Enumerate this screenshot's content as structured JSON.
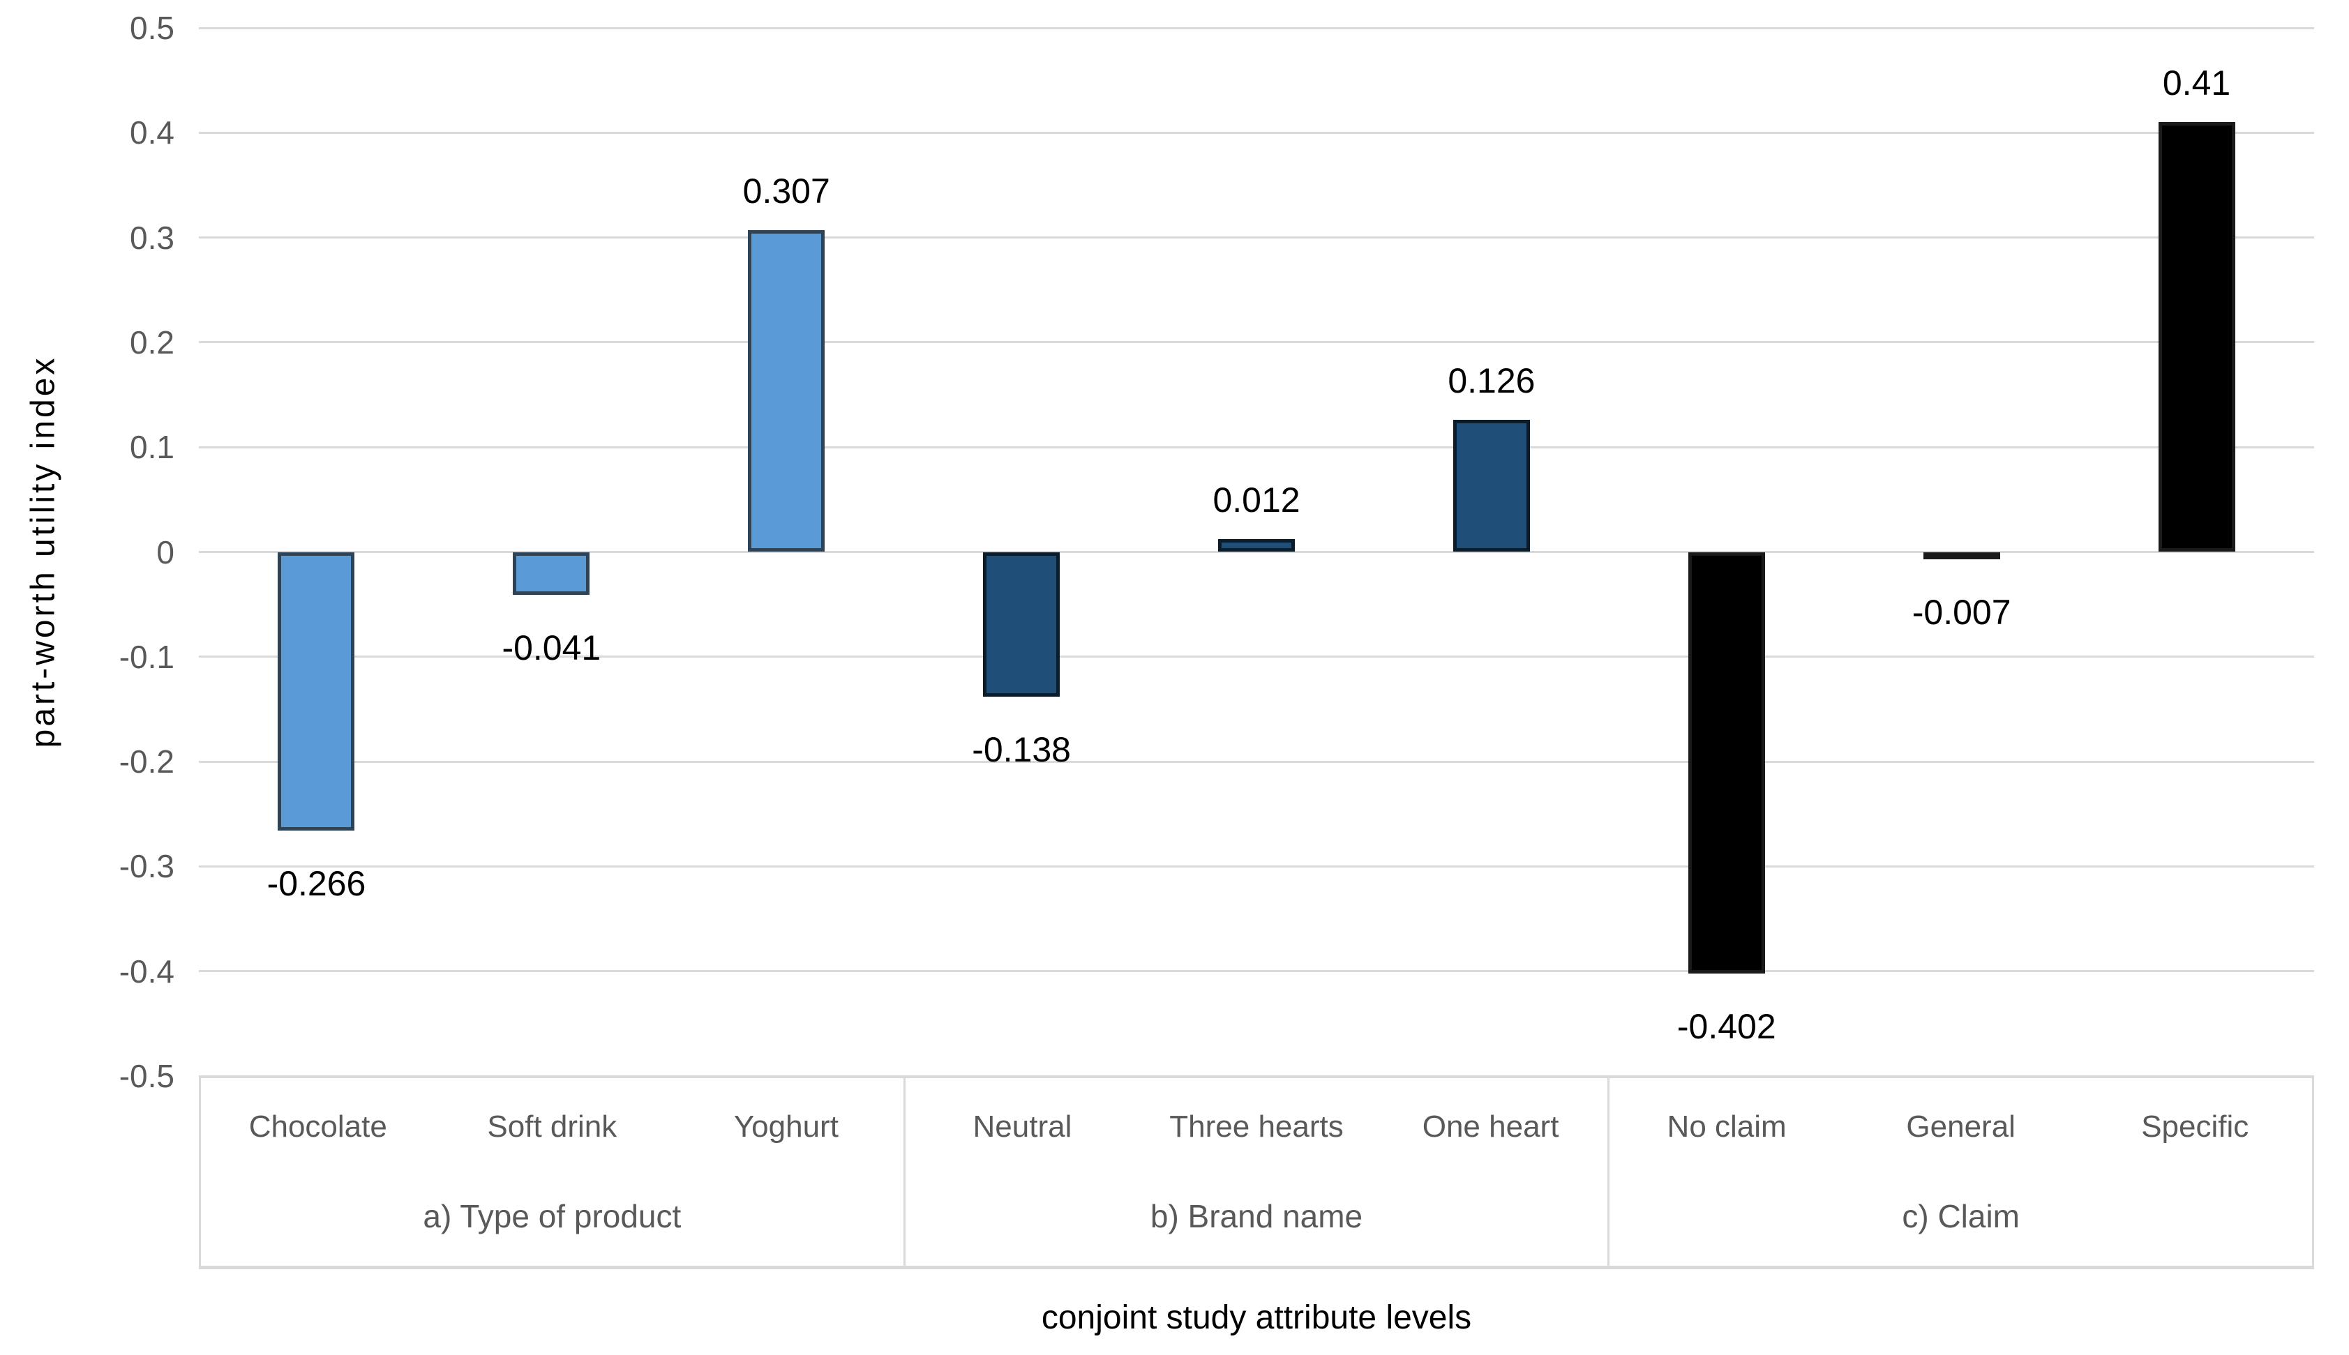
{
  "chart_data": {
    "type": "bar",
    "title": "",
    "xlabel": "conjoint study attribute levels",
    "ylabel": "part-worth utility index",
    "ylim": [
      -0.5,
      0.5
    ],
    "ytick_step": 0.1,
    "ytick_labels": [
      "0.5",
      "0.4",
      "0.3",
      "0.2",
      "0.1",
      "0",
      "-0.1",
      "-0.2",
      "-0.3",
      "-0.4",
      "-0.5"
    ],
    "grid": true,
    "legend_position": "none",
    "value_labels_shown": true,
    "groups": [
      {
        "label": "a) Type of product",
        "fill_color": "#5B9BD5",
        "border_color": "#2E4356",
        "categories": [
          "Chocolate",
          "Soft drink",
          "Yoghurt"
        ],
        "values": [
          -0.266,
          -0.041,
          0.307
        ],
        "value_labels": [
          "-0.266",
          "-0.041",
          "0.307"
        ]
      },
      {
        "label": "b) Brand name",
        "fill_color": "#1F4E79",
        "border_color": "#0B1C2B",
        "categories": [
          "Neutral",
          "Three hearts",
          "One heart"
        ],
        "values": [
          -0.138,
          0.012,
          0.126
        ],
        "value_labels": [
          "-0.138",
          "0.012",
          "0.126"
        ]
      },
      {
        "label": "c) Claim",
        "fill_color": "#000000",
        "border_color": "#1A1A1A",
        "categories": [
          "No claim",
          "General",
          "Specific"
        ],
        "values": [
          -0.402,
          -0.007,
          0.41
        ],
        "value_labels": [
          "-0.402",
          "-0.007",
          "0.41"
        ]
      }
    ],
    "colors": {
      "background": "#FFFFFF",
      "gridline": "#D9D9D9",
      "tick_text": "#595959",
      "category_text": "#595959",
      "value_label_text": "#000000",
      "axis_title_text": "#000000"
    }
  }
}
